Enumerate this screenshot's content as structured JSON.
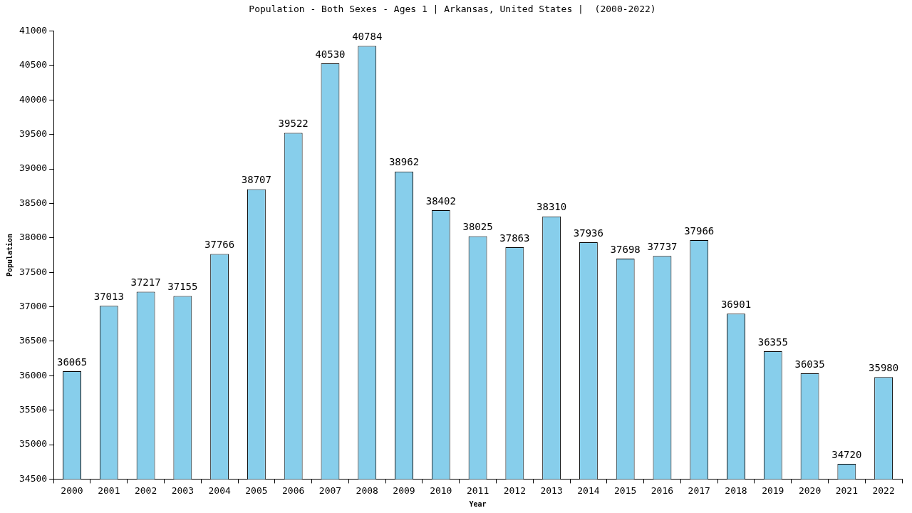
{
  "chart_data": {
    "type": "bar",
    "title": "Population - Both Sexes - Ages 1 | Arkansas, United States |  (2000-2022)",
    "x_label": "Year",
    "y_label": "Population",
    "categories": [
      "2000",
      "2001",
      "2002",
      "2003",
      "2004",
      "2005",
      "2006",
      "2007",
      "2008",
      "2009",
      "2010",
      "2011",
      "2012",
      "2013",
      "2014",
      "2015",
      "2016",
      "2017",
      "2018",
      "2019",
      "2020",
      "2021",
      "2022"
    ],
    "values": [
      36065,
      37013,
      37217,
      37155,
      37766,
      38707,
      39522,
      40530,
      40784,
      38962,
      38402,
      38025,
      37863,
      38310,
      37936,
      37698,
      37737,
      37966,
      36901,
      36355,
      36035,
      34720,
      35980
    ],
    "color": "#87ceeb",
    "ylim": [
      34500,
      41000
    ],
    "yticks": [
      34500,
      35000,
      35500,
      36000,
      36500,
      37000,
      37500,
      38000,
      38500,
      39000,
      39500,
      40000,
      40500,
      41000
    ],
    "grid": false,
    "data_labels": true
  }
}
